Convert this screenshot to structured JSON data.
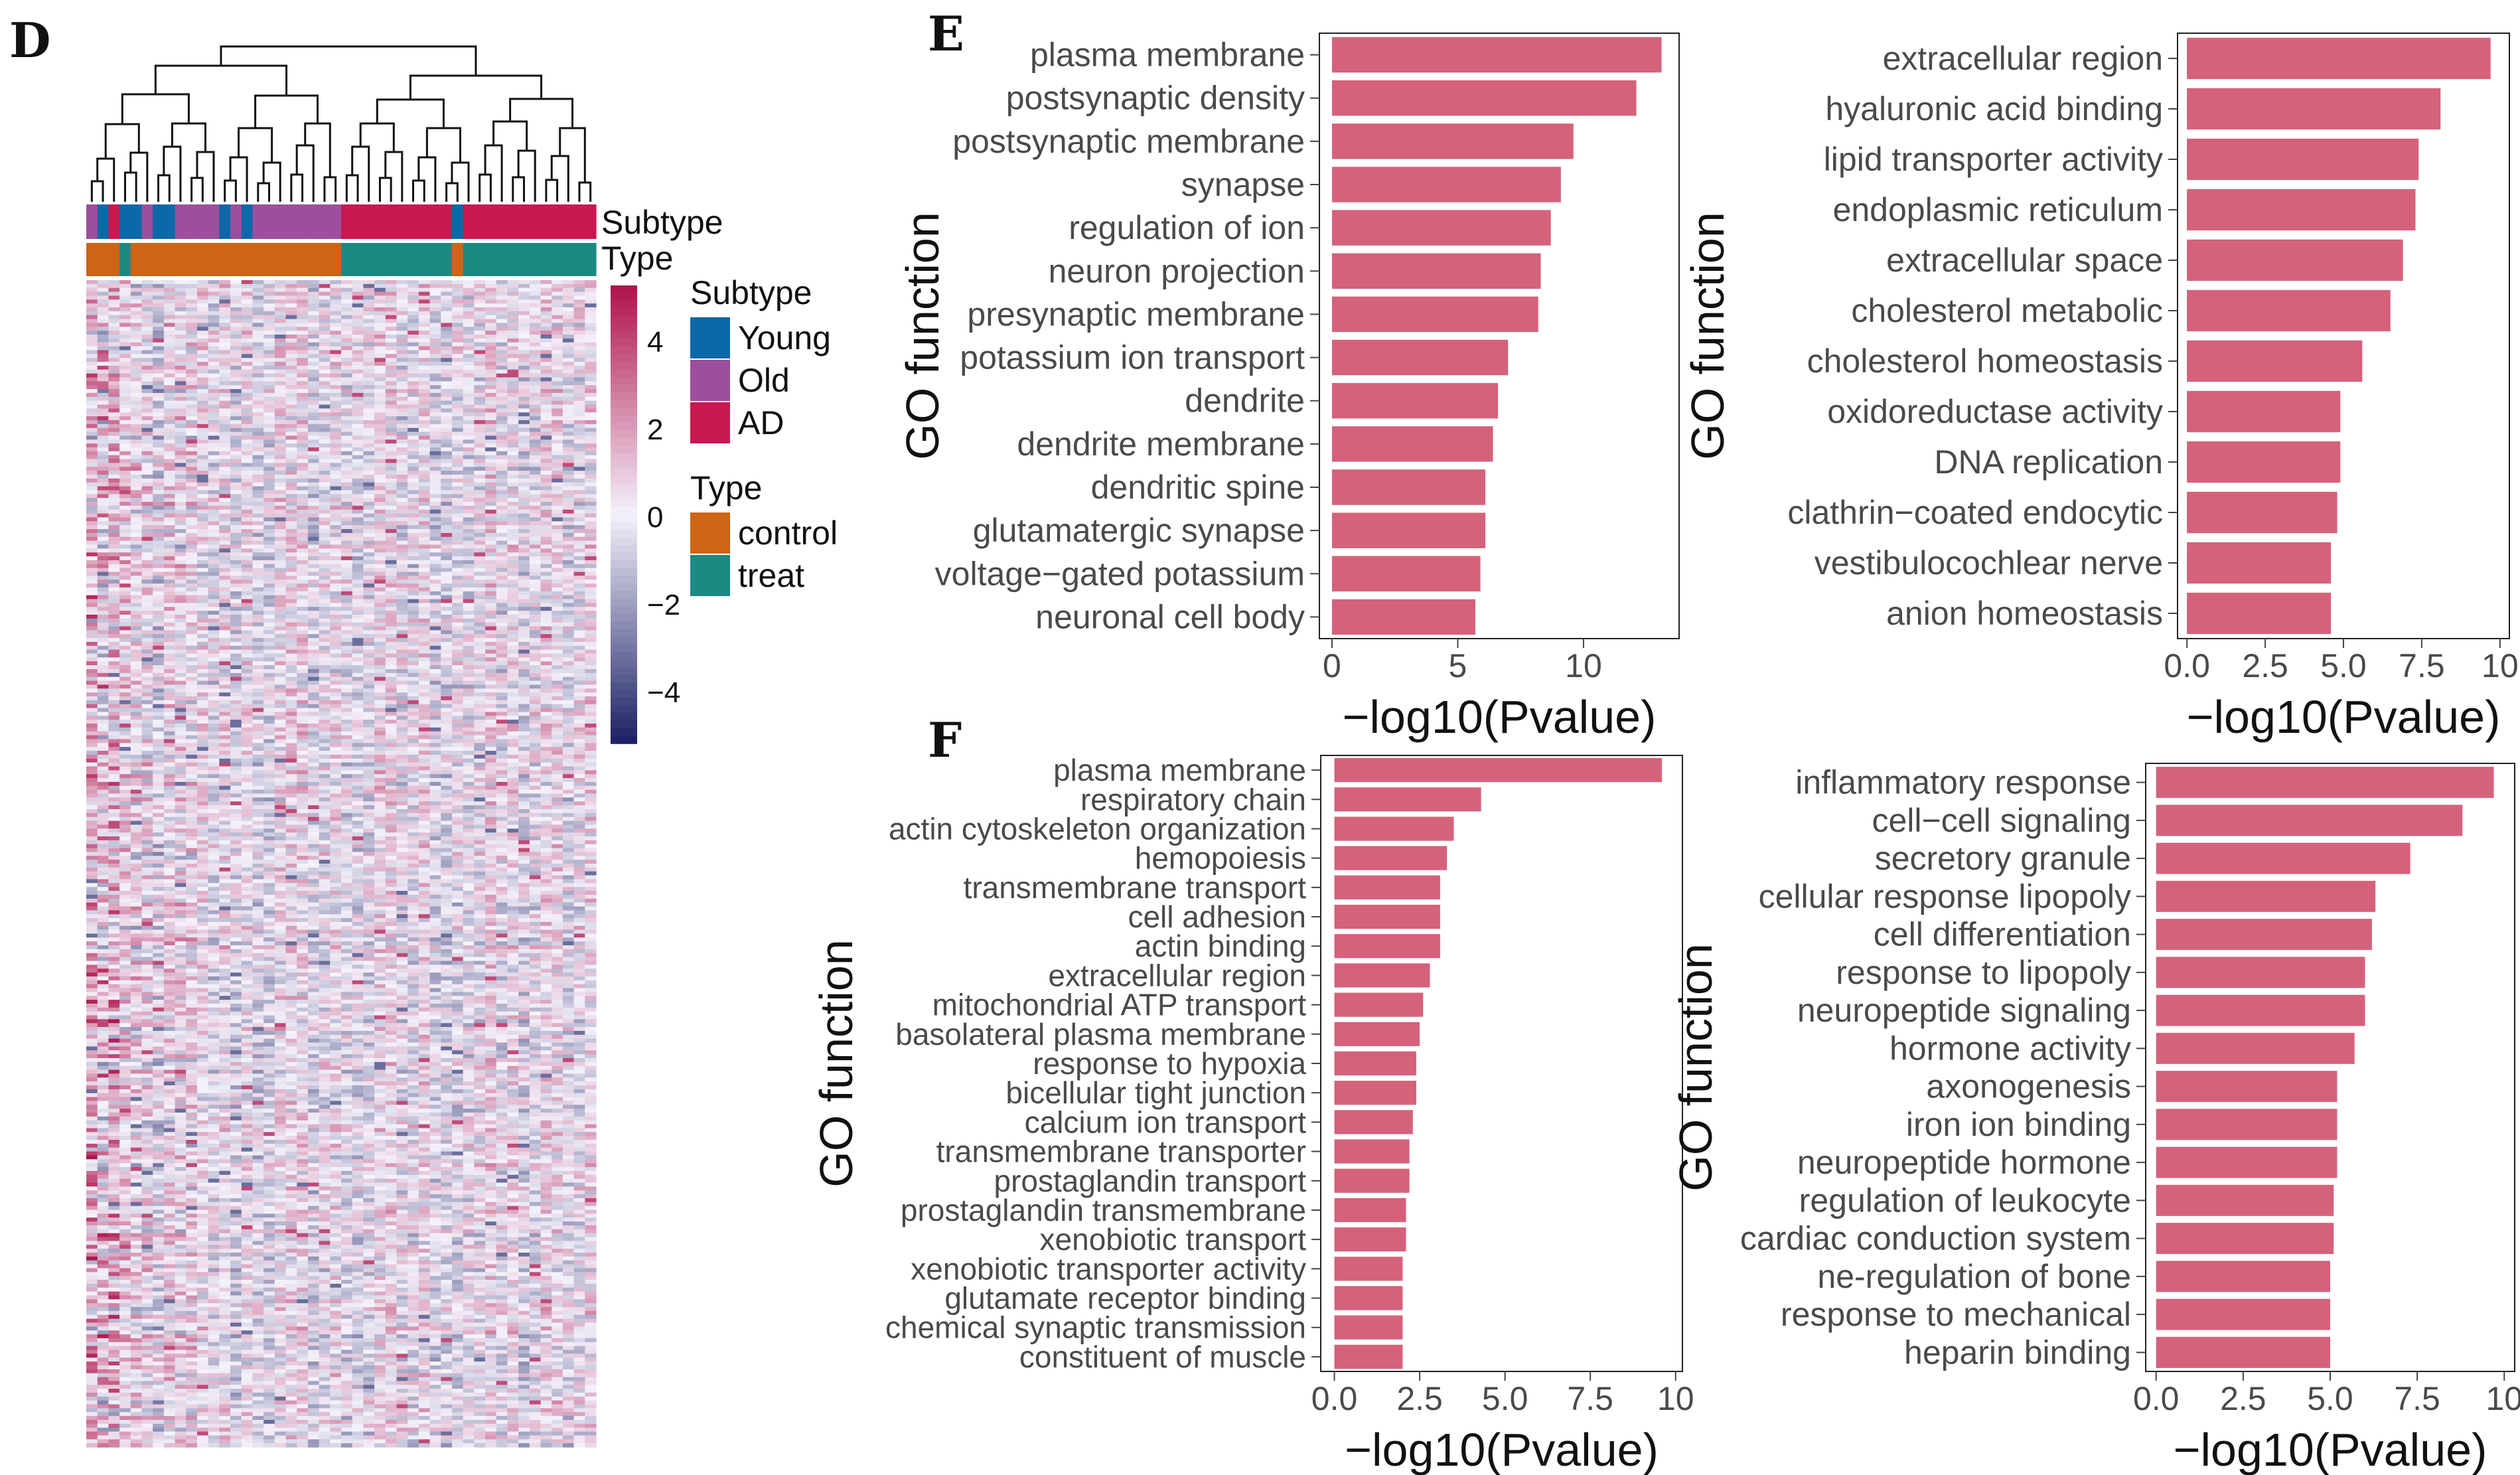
{
  "panel_labels": {
    "D": "D",
    "E": "E",
    "F": "F"
  },
  "colors": {
    "bar": "#d4627a",
    "young": "#0d68a8",
    "old": "#9b4f9c",
    "ad": "#c8184f",
    "control": "#cd6416",
    "treat": "#1c8a82",
    "heat_high": "#b0154e",
    "heat_mid": "#f4f2fb",
    "heat_low": "#1d2366"
  },
  "heatmap": {
    "annotation_rows": [
      "Subtype",
      "Type"
    ],
    "colorbar_ticks": [
      "4",
      "2",
      "0",
      "−2",
      "−4"
    ],
    "legend": {
      "subtype_title": "Subtype",
      "subtype_items": [
        {
          "label": "Young",
          "color": "#0d68a8"
        },
        {
          "label": "Old",
          "color": "#9b4f9c"
        },
        {
          "label": "AD",
          "color": "#c8184f"
        }
      ],
      "type_title": "Type",
      "type_items": [
        {
          "label": "control",
          "color": "#cd6416"
        },
        {
          "label": "treat",
          "color": "#1c8a82"
        }
      ]
    }
  },
  "chart_data": [
    {
      "type": "bar",
      "orientation": "horizontal",
      "panel": "E",
      "categories": [
        "plasma membrane",
        "postsynaptic density",
        "postsynaptic membrane",
        "synapse",
        "regulation of ion",
        "neuron projection",
        "presynaptic membrane",
        "potassium ion transport",
        "dendrite",
        "dendrite membrane",
        "dendritic spine",
        "glutamatergic synapse",
        "voltage−gated potassium",
        "neuronal cell body"
      ],
      "values": [
        13.1,
        12.1,
        9.6,
        9.1,
        8.7,
        8.3,
        8.2,
        7.0,
        6.6,
        6.4,
        6.1,
        6.1,
        5.9,
        5.7
      ],
      "xlabel": "−log10(Pvalue)",
      "ylabel": "GO function",
      "xlim": [
        -0.5,
        13.8
      ],
      "xticks": [
        0,
        5,
        10
      ],
      "xtick_labels": [
        "0",
        "5",
        "10"
      ]
    },
    {
      "type": "bar",
      "orientation": "horizontal",
      "panel": "E",
      "categories": [
        "extracellular region",
        "hyaluronic acid binding",
        "lipid transporter activity",
        "endoplasmic reticulum",
        "extracellular space",
        "cholesterol metabolic",
        "cholesterol homeostasis",
        "oxidoreductase activity",
        "DNA replication",
        "clathrin−coated endocytic",
        "vestibulocochlear nerve",
        "anion homeostasis"
      ],
      "values": [
        9.7,
        8.1,
        7.4,
        7.3,
        6.9,
        6.5,
        5.6,
        4.9,
        4.9,
        4.8,
        4.6,
        4.6
      ],
      "xlabel": "−log10(Pvalue)",
      "ylabel": "GO function",
      "xlim": [
        -0.3,
        10.3
      ],
      "xticks": [
        0,
        2.5,
        5,
        7.5,
        10
      ],
      "xtick_labels": [
        "0.0",
        "2.5",
        "5.0",
        "7.5",
        "10"
      ]
    },
    {
      "type": "bar",
      "orientation": "horizontal",
      "panel": "F",
      "categories": [
        "plasma membrane",
        "respiratory chain",
        "actin cytoskeleton organization",
        "hemopoiesis",
        "transmembrane transport",
        "cell adhesion",
        "actin binding",
        "extracellular region",
        "mitochondrial ATP transport",
        "basolateral plasma membrane",
        "response to hypoxia",
        "bicellular tight junction",
        "calcium ion transport",
        "transmembrane transporter",
        "prostaglandin transport",
        "prostaglandin transmembrane",
        "xenobiotic transport",
        "xenobiotic transporter activity",
        "glutamate receptor binding",
        "chemical synaptic transmission",
        "constituent of muscle"
      ],
      "values": [
        9.6,
        4.3,
        3.5,
        3.3,
        3.1,
        3.1,
        3.1,
        2.8,
        2.6,
        2.5,
        2.4,
        2.4,
        2.3,
        2.2,
        2.2,
        2.1,
        2.1,
        2.0,
        2.0,
        2.0,
        2.0
      ],
      "xlabel": "−log10(Pvalue)",
      "ylabel": "GO function",
      "xlim": [
        -0.4,
        10.2
      ],
      "xticks": [
        0,
        2.5,
        5,
        7.5,
        10
      ],
      "xtick_labels": [
        "0.0",
        "2.5",
        "5.0",
        "7.5",
        "10"
      ]
    },
    {
      "type": "bar",
      "orientation": "horizontal",
      "panel": "F",
      "categories": [
        "inflammatory response",
        "cell−cell signaling",
        "secretory granule",
        "cellular response lipopoly",
        "cell differentiation",
        "response to lipopoly",
        "neuropeptide signaling",
        "hormone activity",
        "axonogenesis",
        "iron ion binding",
        "neuropeptide hormone",
        "regulation of leukocyte",
        "cardiac conduction system",
        "ne-regulation of bone",
        "response to mechanical",
        "heparin binding"
      ],
      "values": [
        9.7,
        8.8,
        7.3,
        6.3,
        6.2,
        6.0,
        6.0,
        5.7,
        5.2,
        5.2,
        5.2,
        5.1,
        5.1,
        5.0,
        5.0,
        5.0
      ],
      "xlabel": "−log10(Pvalue)",
      "ylabel": "GO function",
      "xlim": [
        -0.3,
        10.3
      ],
      "xticks": [
        0,
        2.5,
        5,
        7.5,
        10
      ],
      "xtick_labels": [
        "0.0",
        "2.5",
        "5.0",
        "7.5",
        "10"
      ]
    }
  ]
}
